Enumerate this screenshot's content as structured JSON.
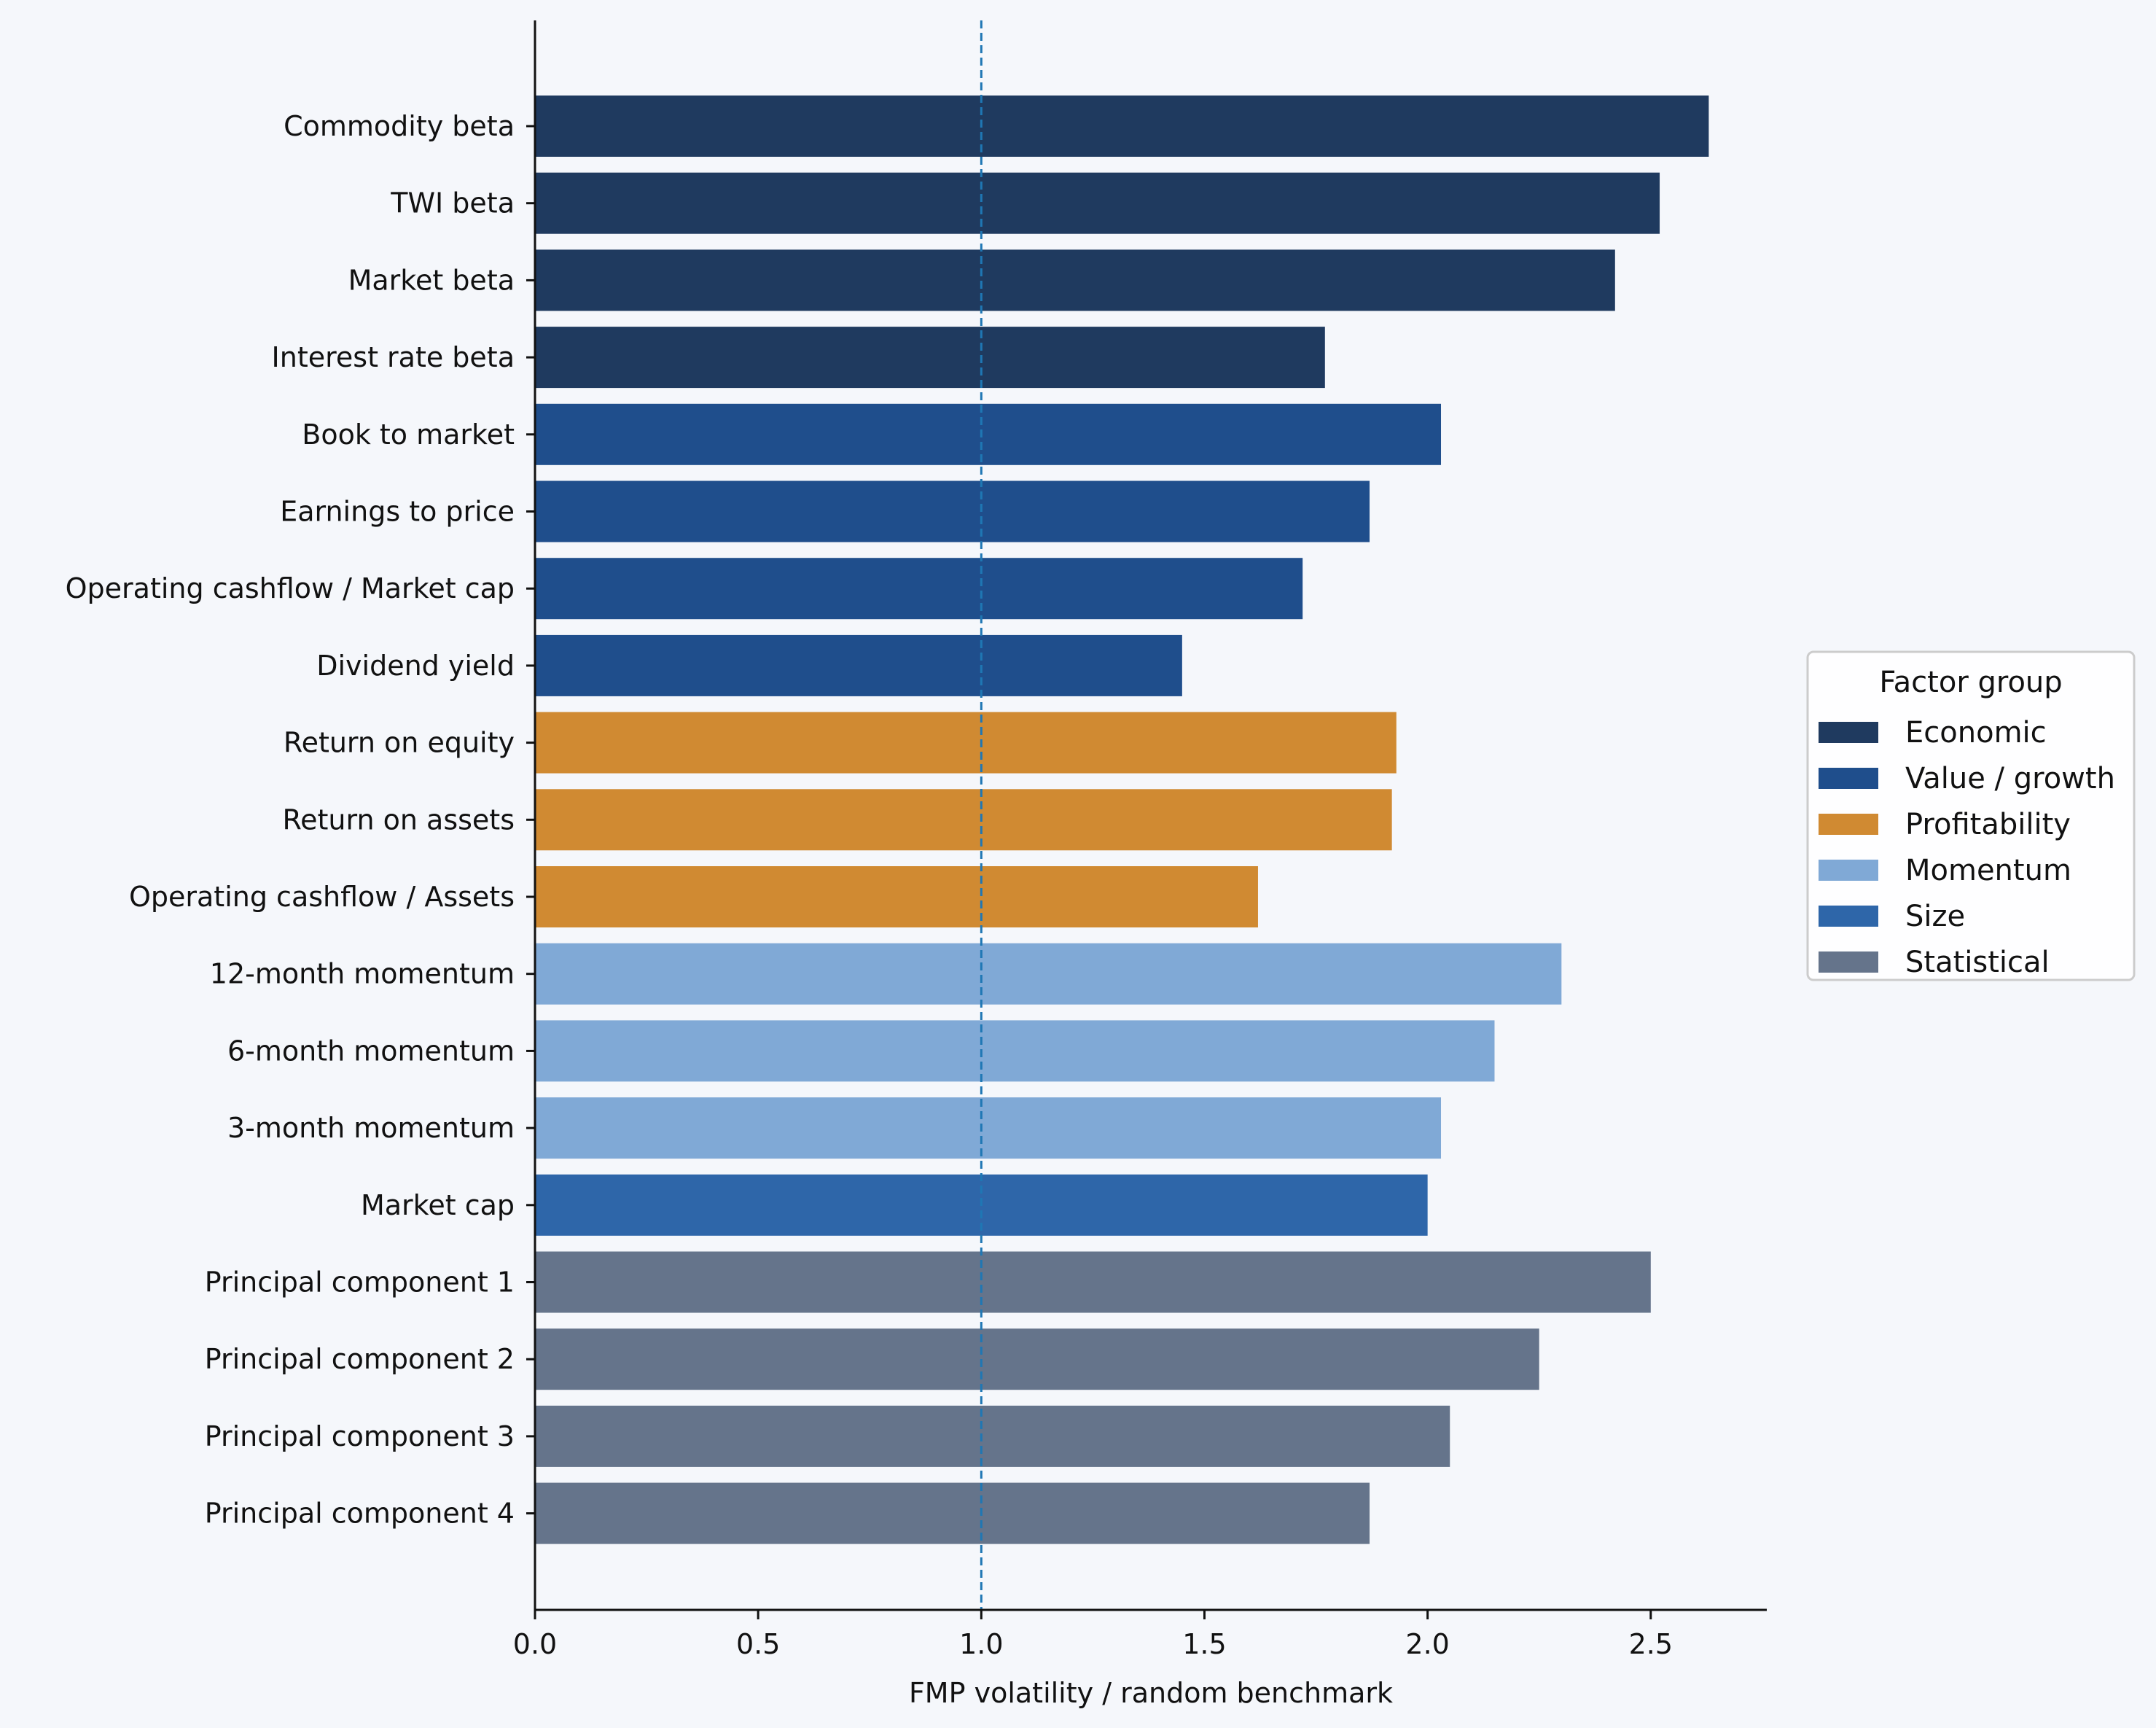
{
  "chart_data": {
    "type": "bar",
    "orientation": "horizontal",
    "xlabel": "FMP volatility / random benchmark",
    "ylabel": "",
    "xlim": [
      0,
      2.76
    ],
    "xticks": [
      0.0,
      0.5,
      1.0,
      1.5,
      2.0,
      2.5
    ],
    "xtick_labels": [
      "0.0",
      "0.5",
      "1.0",
      "1.5",
      "2.0",
      "2.5"
    ],
    "reference_line": {
      "x": 1.0,
      "style": "dashed",
      "color": "#1f77b4"
    },
    "legend": {
      "title": "Factor group",
      "position": "right",
      "entries": [
        {
          "key": "economic",
          "label": "Economic",
          "color": "#1f3a5f"
        },
        {
          "key": "value",
          "label": "Value / growth",
          "color": "#1f4e8c"
        },
        {
          "key": "profitability",
          "label": "Profitability",
          "color": "#d08a32"
        },
        {
          "key": "momentum",
          "label": "Momentum",
          "color": "#80a9d6"
        },
        {
          "key": "size",
          "label": "Size",
          "color": "#2e66a9"
        },
        {
          "key": "statistical",
          "label": "Statistical",
          "color": "#65748b"
        }
      ]
    },
    "bars": [
      {
        "label": "Commodity beta",
        "value": 2.63,
        "group": "economic"
      },
      {
        "label": "TWI beta",
        "value": 2.52,
        "group": "economic"
      },
      {
        "label": "Market beta",
        "value": 2.42,
        "group": "economic"
      },
      {
        "label": "Interest rate beta",
        "value": 1.77,
        "group": "economic"
      },
      {
        "label": "Book to market",
        "value": 2.03,
        "group": "value"
      },
      {
        "label": "Earnings to price",
        "value": 1.87,
        "group": "value"
      },
      {
        "label": "Operating cashflow / Market cap",
        "value": 1.72,
        "group": "value"
      },
      {
        "label": "Dividend yield",
        "value": 1.45,
        "group": "value"
      },
      {
        "label": "Return on equity",
        "value": 1.93,
        "group": "profitability"
      },
      {
        "label": "Return on assets",
        "value": 1.92,
        "group": "profitability"
      },
      {
        "label": "Operating cashflow / Assets",
        "value": 1.62,
        "group": "profitability"
      },
      {
        "label": "12-month momentum",
        "value": 2.3,
        "group": "momentum"
      },
      {
        "label": "6-month momentum",
        "value": 2.15,
        "group": "momentum"
      },
      {
        "label": "3-month momentum",
        "value": 2.03,
        "group": "momentum"
      },
      {
        "label": "Market cap",
        "value": 2.0,
        "group": "size"
      },
      {
        "label": "Principal component 1",
        "value": 2.5,
        "group": "statistical"
      },
      {
        "label": "Principal component 2",
        "value": 2.25,
        "group": "statistical"
      },
      {
        "label": "Principal component 3",
        "value": 2.05,
        "group": "statistical"
      },
      {
        "label": "Principal component 4",
        "value": 1.87,
        "group": "statistical"
      }
    ]
  }
}
